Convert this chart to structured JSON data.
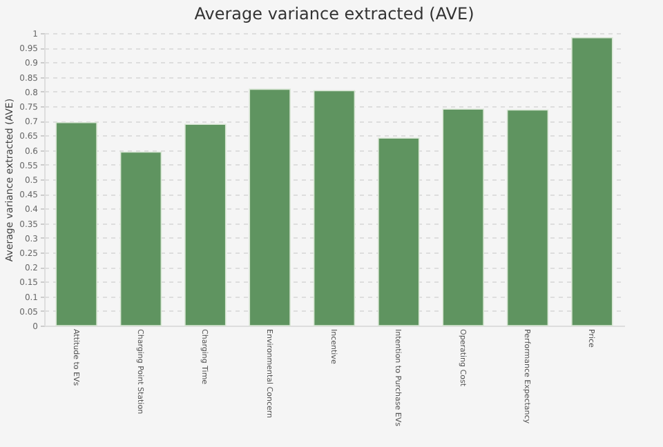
{
  "chart_data": {
    "type": "bar",
    "title": "Average variance extracted (AVE)",
    "ylabel": "Average variance extracted (AVE)",
    "categories": [
      "Attitude to EVs",
      "Charging Point Station",
      "Charging Time",
      "Environmental Concern",
      "Incentive",
      "Intention to Purchase EVs",
      "Operating Cost",
      "Performance Expectancy",
      "Price"
    ],
    "values": [
      0.694,
      0.593,
      0.688,
      0.808,
      0.803,
      0.641,
      0.74,
      0.737,
      0.984
    ],
    "color": "#5f9460",
    "ylim": [
      0,
      1
    ],
    "yticks": [
      0,
      0.05,
      0.1,
      0.15,
      0.2,
      0.25,
      0.3,
      0.35,
      0.4,
      0.45,
      0.5,
      0.55,
      0.6,
      0.65,
      0.7,
      0.75,
      0.8,
      0.85,
      0.9,
      0.95,
      1
    ],
    "grid": "y"
  }
}
